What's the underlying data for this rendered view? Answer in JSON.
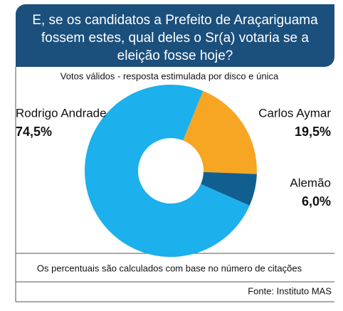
{
  "chart_data": {
    "type": "donut",
    "title": "E, se os candidatos a Prefeito de Araçariguama fossem estes, qual deles o Sr(a) votaria se a eleição fosse hoje?",
    "subtitle": "Votos válidos - resposta estimulada por disco e única",
    "categories": [
      "Carlos Aymar",
      "Alemão",
      "Rodrigo Andrade"
    ],
    "values": [
      19.5,
      6.0,
      74.5
    ],
    "value_labels": [
      "19,5%",
      "6,0%",
      "74,5%"
    ],
    "colors": [
      "#f6a623",
      "#115f8f",
      "#1cb0ec"
    ],
    "note": "Os percentuais são calculados com base no número de citações",
    "source": "Fonte: Instituto MAS"
  }
}
